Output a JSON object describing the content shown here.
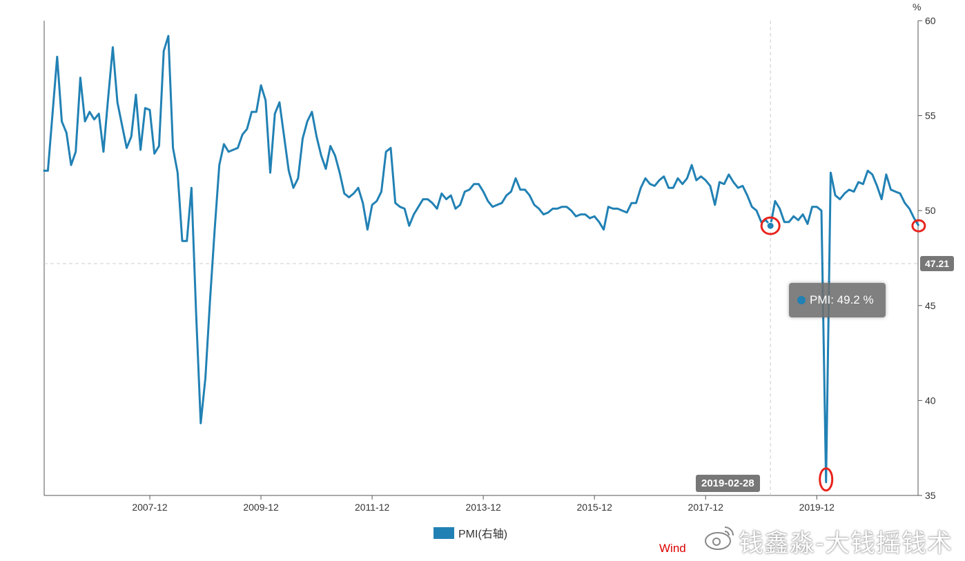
{
  "chart_data": {
    "type": "line",
    "title": "",
    "xlabel": "",
    "ylabel": "%",
    "y_axis_side": "right",
    "ylim": [
      35,
      60
    ],
    "yticks": [
      35,
      40,
      45,
      50,
      55,
      60
    ],
    "x_start": "2006-01",
    "x_end": "2021-10",
    "x_frequency": "monthly",
    "xtick_labels": [
      "2007-12",
      "2009-12",
      "2011-12",
      "2013-12",
      "2015-12",
      "2017-12",
      "2019-12"
    ],
    "grid": false,
    "legend_position": "bottom-center",
    "series": [
      {
        "name": "PMI(右轴)",
        "color": "#2181b4",
        "values": [
          52.1,
          52.1,
          55.1,
          58.1,
          54.7,
          54.1,
          52.4,
          53.1,
          57.0,
          54.7,
          55.2,
          54.8,
          55.1,
          53.1,
          55.9,
          58.6,
          55.7,
          54.5,
          53.3,
          53.9,
          56.1,
          53.2,
          55.4,
          55.3,
          53.0,
          53.4,
          58.4,
          59.2,
          53.3,
          52.0,
          48.4,
          48.4,
          51.2,
          44.6,
          38.8,
          41.2,
          45.3,
          49.0,
          52.4,
          53.5,
          53.1,
          53.2,
          53.3,
          54.0,
          54.3,
          55.2,
          55.2,
          56.6,
          55.8,
          52.0,
          55.1,
          55.7,
          53.9,
          52.1,
          51.2,
          51.7,
          53.8,
          54.7,
          55.2,
          53.9,
          52.9,
          52.2,
          53.4,
          52.9,
          52.0,
          50.9,
          50.7,
          50.9,
          51.2,
          50.4,
          49.0,
          50.3,
          50.5,
          51.0,
          53.1,
          53.3,
          50.4,
          50.2,
          50.1,
          49.2,
          49.8,
          50.2,
          50.6,
          50.6,
          50.4,
          50.1,
          50.9,
          50.6,
          50.8,
          50.1,
          50.3,
          51.0,
          51.1,
          51.4,
          51.4,
          51.0,
          50.5,
          50.2,
          50.3,
          50.4,
          50.8,
          51.0,
          51.7,
          51.1,
          51.1,
          50.8,
          50.3,
          50.1,
          49.8,
          49.9,
          50.1,
          50.1,
          50.2,
          50.2,
          50.0,
          49.7,
          49.8,
          49.8,
          49.6,
          49.7,
          49.4,
          49.0,
          50.2,
          50.1,
          50.1,
          50.0,
          49.9,
          50.4,
          50.4,
          51.2,
          51.7,
          51.4,
          51.3,
          51.6,
          51.8,
          51.2,
          51.2,
          51.7,
          51.4,
          51.7,
          52.4,
          51.6,
          51.8,
          51.6,
          51.3,
          50.3,
          51.5,
          51.4,
          51.9,
          51.5,
          51.2,
          51.3,
          50.8,
          50.2,
          50.0,
          49.4,
          49.5,
          49.2,
          50.5,
          50.1,
          49.4,
          49.4,
          49.7,
          49.5,
          49.8,
          49.3,
          50.2,
          50.2,
          50.0,
          35.7,
          52.0,
          50.8,
          50.6,
          50.9,
          51.1,
          51.0,
          51.5,
          51.4,
          52.1,
          51.9,
          51.3,
          50.6,
          51.9,
          51.1,
          51.0,
          50.9,
          50.4,
          50.1,
          49.6,
          49.2
        ]
      }
    ],
    "crosshair": {
      "x_label": "2019-02-28",
      "y_label": "47.21"
    },
    "tooltip": {
      "series": "PMI",
      "value": "49.2",
      "unit": "%",
      "text": "PMI: 49.2 %"
    },
    "annotations": {
      "highlighted_points": [
        "2019-02",
        "2020-02",
        "2021-10"
      ],
      "color": "#e8231c"
    }
  },
  "legend": {
    "label": "PMI(右轴)"
  },
  "unit_label": "%",
  "source": "Wind",
  "watermark": "钱鑫淼-大钱摇钱术"
}
